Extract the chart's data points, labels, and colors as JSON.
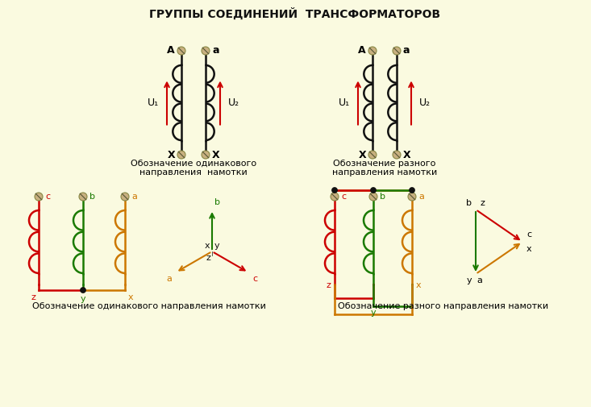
{
  "title": "ГРУППЫ СОЕДИНЕНИЙ  ТРАНСФОРМАТОРОВ",
  "bg_color": "#FAFAE0",
  "text_color": "#111111",
  "red": "#CC0000",
  "green": "#1A7A00",
  "orange": "#CC7700",
  "black": "#111111",
  "caption1a": "Обозначение одинакового",
  "caption1b": "направления  намотки",
  "caption2a": "Обозначение разного",
  "caption2b": "направления намотки",
  "caption3": "Обозначение одинакового направления намотки",
  "caption4": "Обозначение разного направления намотки"
}
